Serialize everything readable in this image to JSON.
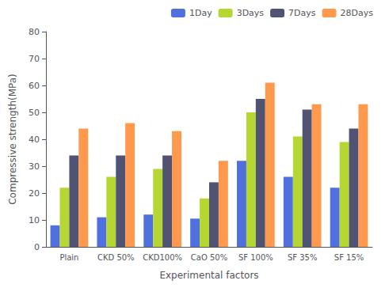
{
  "chart_data": {
    "type": "bar",
    "categories": [
      "Plain",
      "CKD 50%",
      "CKD100%",
      "CaO 50%",
      "SF 100%",
      "SF 35%",
      "SF 15%"
    ],
    "series": [
      {
        "name": "1Day",
        "values": [
          8,
          11,
          12,
          10.5,
          32,
          26,
          22
        ]
      },
      {
        "name": "3Days",
        "values": [
          22,
          26,
          29,
          18,
          50,
          41,
          39
        ]
      },
      {
        "name": "7Days",
        "values": [
          34,
          34,
          34,
          24,
          55,
          51,
          44
        ]
      },
      {
        "name": "28Days",
        "values": [
          44,
          46,
          43,
          32,
          61,
          53,
          53
        ]
      }
    ],
    "xlabel": "Experimental factors",
    "ylabel": "Compressive strength(MPa)",
    "ylim": [
      0,
      80
    ],
    "yticks": [
      0,
      10,
      20,
      30,
      40,
      50,
      60,
      70,
      80
    ],
    "grid": false,
    "legend": "upper right"
  }
}
